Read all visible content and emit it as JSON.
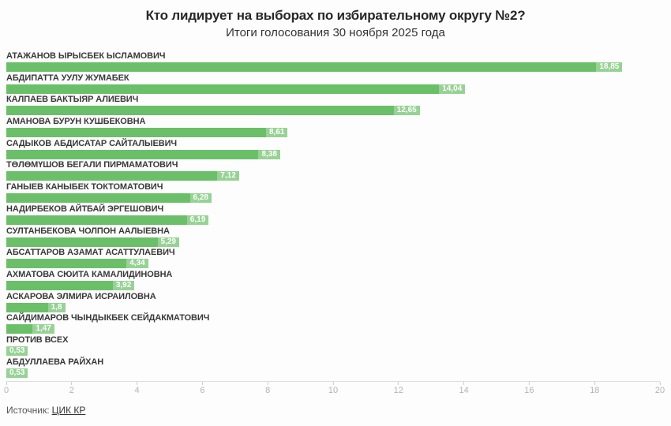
{
  "chart_data": {
    "type": "bar",
    "orientation": "horizontal",
    "title": "Кто лидирует на выборах по избирательному округу №2?",
    "subtitle": "Итоги голосования 30 ноября 2025 года",
    "categories": [
      "АТАЖАНОВ ЫРЫСБЕК ЫСЛАМОВИЧ",
      "АБДИПАТТА УУЛУ ЖУМАБЕК",
      "КАЛПАЕВ БАКТЫЯР АЛИЕВИЧ",
      "АМАНОВА БУРУН КУШБЕКОВНА",
      "САДЫКОВ АБДИСАТАР САЙТАЛЫЕВИЧ",
      "ТӨЛӨМҮШОВ БЕГАЛИ ПИРМАМАТОВИЧ",
      "ГАНЫЕВ КАНЫБЕК ТОКТОМАТОВИЧ",
      "НАДИРБЕКОВ АЙТБАЙ ЭРГЕШОВИЧ",
      "СУЛТАНБЕКОВА ЧОЛПОН ААЛЫЕВНА",
      "АБСАТТАРОВ АЗАМАТ АСАТТУЛАЕВИЧ",
      "АХМАТОВА СЮИТА КАМАЛИДИНОВНА",
      "АСКАРОВА ЭЛМИРА ИСРАИЛОВНА",
      "САЙДИМАРОВ ЧЫНДЫКБЕК СЕЙДАКМАТОВИЧ",
      "ПРОТИВ ВСЕХ",
      "АБДУЛЛАЕВА РАЙХАН"
    ],
    "values": [
      18.85,
      14.04,
      12.65,
      8.61,
      8.38,
      7.12,
      6.28,
      6.19,
      5.29,
      4.34,
      3.92,
      1.8,
      1.47,
      0.53,
      0.53
    ],
    "value_labels": [
      "18,85",
      "14,04",
      "12,65",
      "8,61",
      "8,38",
      "7,12",
      "6,28",
      "6,19",
      "5,29",
      "4,34",
      "3,92",
      "1,8",
      "1,47",
      "0,53",
      "0,53"
    ],
    "xlabel": "",
    "ylabel": "",
    "xlim": [
      0,
      20
    ],
    "x_ticks": [
      0,
      2,
      4,
      6,
      8,
      10,
      12,
      14,
      16,
      18,
      20
    ],
    "grid": false,
    "legend": "none",
    "bar_color": "#6abf68"
  },
  "footer": {
    "source_label": "Источник:",
    "source_link": "ЦИК КР"
  }
}
